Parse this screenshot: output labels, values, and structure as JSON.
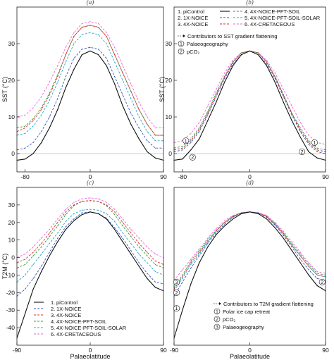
{
  "panel_labels": [
    "(a)",
    "(b)",
    "(c)",
    "(d)"
  ],
  "colors": {
    "piControl": "#111111",
    "1X-NOICE": "#3355bb",
    "4X-NOICE": "#dd3322",
    "4X-NOICE-PFT-SOIL": "#339944",
    "4X-NOICE-PFT-SOIL-SOLAR": "#22aacc",
    "4X-CRETACEOUS": "#ee66dd"
  },
  "chart_data": [
    {
      "id": "a",
      "type": "line",
      "panel_label": "(a)",
      "xlabel": "",
      "ylabel": "SST (°C)",
      "xlim": [
        -90,
        90
      ],
      "ylim": [
        -5,
        40
      ],
      "xticks": [
        -80,
        0,
        90
      ],
      "yticks": [
        0,
        10,
        20,
        30
      ],
      "zero_line": true,
      "x": [
        -90,
        -80,
        -70,
        -60,
        -50,
        -40,
        -30,
        -20,
        -10,
        0,
        10,
        20,
        30,
        40,
        50,
        60,
        70,
        80,
        90
      ],
      "series": [
        {
          "name": "piControl",
          "dashed": false,
          "values": [
            -1.8,
            -1.5,
            0,
            3,
            7,
            12,
            18,
            23,
            27,
            28,
            27,
            24,
            19,
            13,
            8,
            4,
            0.5,
            -1.2,
            -1.8
          ]
        },
        {
          "name": "1X-NOICE",
          "dashed": true,
          "values": [
            1,
            1.5,
            3,
            6,
            10,
            15,
            21,
            26,
            28.5,
            29,
            28.5,
            26,
            21,
            16,
            11,
            7,
            3.5,
            1.5,
            1.5
          ]
        },
        {
          "name": "4X-NOICE",
          "dashed": true,
          "values": [
            6,
            7,
            9,
            12,
            16,
            21,
            27,
            32,
            34.5,
            35,
            34.5,
            32,
            27,
            22,
            17,
            12,
            8,
            5,
            5
          ]
        },
        {
          "name": "4X-NOICE-PFT-SOIL",
          "dashed": true,
          "values": [
            7,
            7.5,
            9.5,
            12.5,
            16.5,
            21.5,
            27,
            32,
            34.5,
            35,
            34.5,
            32,
            27,
            22,
            17,
            12,
            8,
            5,
            5
          ]
        },
        {
          "name": "4X-NOICE-PFT-SOIL-SOLAR",
          "dashed": true,
          "values": [
            5,
            5.5,
            7.5,
            10.5,
            14.5,
            19.5,
            25,
            30,
            32.5,
            33,
            32.5,
            30,
            25,
            20,
            15,
            10,
            6,
            3.5,
            3.5
          ]
        },
        {
          "name": "4X-CRETACEOUS",
          "dashed": true,
          "values": [
            10,
            10.5,
            12.5,
            15.5,
            19.5,
            24,
            29,
            33,
            35.5,
            36,
            35.5,
            33,
            29,
            24,
            19,
            14,
            10,
            7,
            7
          ]
        }
      ]
    },
    {
      "id": "b",
      "type": "line",
      "panel_label": "(b)",
      "xlabel": "",
      "ylabel": "SST (°C)",
      "xlim": [
        -90,
        90
      ],
      "ylim": [
        -5,
        40
      ],
      "xticks": [
        -80,
        0,
        90
      ],
      "yticks": [
        0,
        10,
        20,
        30
      ],
      "zero_line": true,
      "x": [
        -90,
        -80,
        -70,
        -60,
        -50,
        -40,
        -30,
        -20,
        -10,
        0,
        10,
        20,
        30,
        40,
        50,
        60,
        70,
        80,
        90
      ],
      "series": [
        {
          "name": "piControl",
          "dashed": false,
          "values": [
            -1.8,
            -1.5,
            1,
            4,
            9,
            14,
            19.5,
            24,
            27,
            28,
            27,
            24,
            19.5,
            14,
            9,
            4.5,
            0.5,
            -1.2,
            -1.8
          ]
        },
        {
          "name": "1X-NOICE",
          "dashed": true,
          "values": [
            0.5,
            1,
            3,
            6,
            10.5,
            15.5,
            20.5,
            24.5,
            27,
            28,
            27,
            24.5,
            20.5,
            15.5,
            10.5,
            6,
            2.5,
            0.5,
            0
          ]
        },
        {
          "name": "4X-NOICE",
          "dashed": true,
          "values": [
            1,
            1.5,
            3.5,
            6.5,
            11,
            16,
            21,
            25,
            27.5,
            28,
            27.5,
            25,
            21,
            16,
            11,
            6.5,
            3,
            1,
            0.5
          ]
        },
        {
          "name": "4X-NOICE-PFT-SOIL",
          "dashed": true,
          "values": [
            1.5,
            2,
            4,
            7,
            11.5,
            16.5,
            21,
            25,
            27.5,
            28,
            27.5,
            25,
            21,
            16,
            11,
            7,
            3.5,
            1.5,
            1
          ]
        },
        {
          "name": "4X-NOICE-PFT-SOIL-SOLAR",
          "dashed": true,
          "values": [
            1,
            1.5,
            3.5,
            6.5,
            11,
            16,
            21,
            25,
            27.5,
            28,
            27.5,
            25,
            21,
            16,
            11,
            6.5,
            3,
            1,
            0.5
          ]
        },
        {
          "name": "4X-CRETACEOUS",
          "dashed": true,
          "values": [
            3,
            3.5,
            5.5,
            8.5,
            13,
            17.5,
            22,
            25.5,
            27.5,
            28,
            27.5,
            25.5,
            22,
            17.5,
            13,
            8.5,
            5,
            3,
            2.5
          ]
        }
      ],
      "legend": [
        {
          "num": "1.",
          "name": "piControl",
          "col": 0
        },
        {
          "num": "2.",
          "name": "1X-NOICE",
          "col": 0
        },
        {
          "num": "3.",
          "name": "4X-NOICE",
          "col": 0
        },
        {
          "num": "4.",
          "name": "4X-NOICE-PFT-SOIL",
          "col": 1
        },
        {
          "num": "5.",
          "name": "4X-NOICE-PFT-SOIL-SOLAR",
          "col": 1
        },
        {
          "num": "6.",
          "name": "4X-CRETACEOUS",
          "col": 1
        }
      ],
      "annotation_title": "Contributors to SST gradient flattening",
      "contributors": [
        {
          "num": "1",
          "label": "Palaeogeography"
        },
        {
          "num": "2",
          "label": "pCO₂"
        }
      ],
      "markers": [
        {
          "num": "1",
          "x": -76,
          "y": 3.5
        },
        {
          "num": "2",
          "x": -68,
          "y": -1
        },
        {
          "num": "1",
          "x": 77,
          "y": 3
        },
        {
          "num": "2",
          "x": 62,
          "y": 0.5
        }
      ]
    },
    {
      "id": "c",
      "type": "line",
      "panel_label": "(c)",
      "xlabel": "Palaeolatitude",
      "ylabel": "T2M (°C)",
      "xlim": [
        -90,
        90
      ],
      "ylim": [
        -50,
        40
      ],
      "xticks": [
        -90,
        0,
        90
      ],
      "yticks": [
        -40,
        -30,
        -20,
        -10,
        0,
        10,
        20,
        30
      ],
      "zero_line": false,
      "x": [
        -90,
        -80,
        -70,
        -60,
        -50,
        -40,
        -30,
        -20,
        -10,
        0,
        10,
        20,
        30,
        40,
        50,
        60,
        70,
        80,
        90
      ],
      "series": [
        {
          "name": "piControl",
          "dashed": false,
          "values": [
            -46,
            -32,
            -18,
            -8,
            1,
            9,
            16,
            21,
            24.5,
            26,
            25,
            22,
            16,
            9,
            2,
            -5,
            -12,
            -17,
            -19
          ]
        },
        {
          "name": "1X-NOICE",
          "dashed": true,
          "values": [
            -22,
            -18,
            -12,
            -5,
            3,
            11,
            17.5,
            22,
            25.5,
            26,
            25,
            22.5,
            17,
            11,
            4,
            -3,
            -9,
            -14,
            -15
          ]
        },
        {
          "name": "4X-NOICE",
          "dashed": true,
          "values": [
            -3,
            -1,
            3,
            8,
            14,
            20,
            26,
            30,
            32,
            32.5,
            32,
            30,
            26,
            20,
            14,
            8,
            3,
            -2,
            -4
          ]
        },
        {
          "name": "4X-NOICE-PFT-SOIL",
          "dashed": true,
          "values": [
            -6,
            -4,
            1,
            6,
            12,
            18,
            24.5,
            29.5,
            32,
            32.5,
            32,
            29.5,
            24.5,
            18,
            12,
            6,
            1,
            -4,
            -6
          ]
        },
        {
          "name": "4X-NOICE-PFT-SOIL-SOLAR",
          "dashed": true,
          "values": [
            -14,
            -10,
            -4,
            2,
            8,
            14,
            20.5,
            25,
            27,
            27.5,
            27,
            25,
            20.5,
            14,
            8,
            2,
            -3,
            -8,
            -10
          ]
        },
        {
          "name": "4X-CRETACEOUS",
          "dashed": true,
          "values": [
            0,
            2,
            6,
            11,
            16,
            22,
            27.5,
            31.5,
            33.5,
            34,
            33.5,
            31.5,
            27.5,
            22,
            16,
            11,
            6,
            2,
            0
          ]
        }
      ],
      "legend": [
        {
          "num": "1.",
          "name": "piControl"
        },
        {
          "num": "2.",
          "name": "1X-NOICE"
        },
        {
          "num": "3.",
          "name": "4X-NOICE"
        },
        {
          "num": "4.",
          "name": "4X-NOICE-PFT-SOIL"
        },
        {
          "num": "5.",
          "name": "4X-NOICE-PFT-SOIL-SOLAR"
        },
        {
          "num": "6.",
          "name": "4X-CRETACEOUS"
        }
      ]
    },
    {
      "id": "d",
      "type": "line",
      "panel_label": "(d)",
      "xlabel": "Palaeolatitude",
      "ylabel": "",
      "xlim": [
        -90,
        90
      ],
      "ylim": [
        -50,
        40
      ],
      "xticks": [
        -90,
        0,
        90
      ],
      "yticks": [],
      "zero_line": false,
      "x": [
        -90,
        -80,
        -70,
        -60,
        -50,
        -40,
        -30,
        -20,
        -10,
        0,
        10,
        20,
        30,
        40,
        50,
        60,
        70,
        80,
        90
      ],
      "series": [
        {
          "name": "piControl",
          "dashed": false,
          "values": [
            -46,
            -30,
            -15,
            -3,
            6,
            13,
            18,
            22,
            25,
            26,
            25,
            22,
            17,
            11,
            4,
            -3,
            -10,
            -16,
            -19
          ]
        },
        {
          "name": "1X-NOICE",
          "dashed": true,
          "values": [
            -22,
            -14,
            -6,
            1,
            8,
            14,
            19,
            23,
            25.5,
            26,
            25.5,
            23,
            18.5,
            12.5,
            6,
            -1,
            -7,
            -12,
            -13
          ]
        },
        {
          "name": "4X-NOICE",
          "dashed": true,
          "values": [
            -18,
            -11,
            -3,
            3,
            9,
            15,
            20,
            23.5,
            25.5,
            26,
            25.5,
            23.5,
            19,
            13.5,
            7,
            1,
            -5,
            -10,
            -11
          ]
        },
        {
          "name": "4X-NOICE-PFT-SOIL",
          "dashed": true,
          "values": [
            -17,
            -10,
            -2,
            4,
            10,
            15.5,
            20,
            23.5,
            25.5,
            26,
            25.5,
            23.5,
            19.5,
            14,
            8,
            2,
            -4,
            -9,
            -10
          ]
        },
        {
          "name": "4X-NOICE-PFT-SOIL-SOLAR",
          "dashed": true,
          "values": [
            -19,
            -12,
            -4,
            2,
            9,
            15,
            20,
            23.5,
            25.5,
            26,
            25.5,
            23.5,
            19,
            13.5,
            7,
            1,
            -5,
            -10,
            -11
          ]
        },
        {
          "name": "4X-CRETACEOUS",
          "dashed": true,
          "values": [
            -13,
            -7,
            -1,
            5,
            11,
            16.5,
            21,
            24,
            25.5,
            26,
            25.5,
            24,
            20,
            15,
            9,
            3,
            -3,
            -8,
            -9
          ]
        }
      ],
      "annotation_title": "Contributors to T2M gradient flattening",
      "contributors": [
        {
          "num": "1",
          "label": "Polar ice cap retreat"
        },
        {
          "num": "2",
          "label": "pCO₂"
        },
        {
          "num": "3",
          "label": "Palaeogeography"
        }
      ],
      "markers": [
        {
          "num": "3",
          "x": -87,
          "y": -14
        },
        {
          "num": "2",
          "x": -87,
          "y": -20
        },
        {
          "num": "1",
          "x": -87,
          "y": -29
        },
        {
          "num": "2",
          "x": 86,
          "y": -14
        }
      ]
    }
  ]
}
